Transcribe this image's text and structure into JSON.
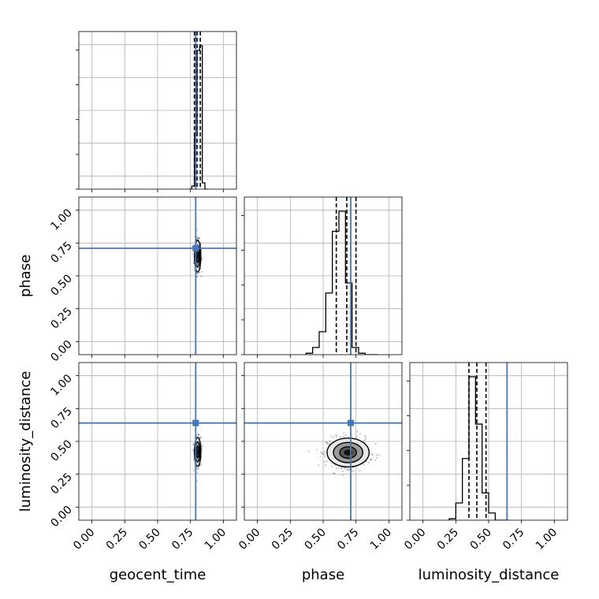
{
  "chart_data": {
    "type": "corner",
    "parameters": [
      "geocent_time",
      "phase",
      "luminosity_distance"
    ],
    "axis_labels": {
      "x": [
        "geocent_time",
        "phase",
        "luminosity_distance"
      ],
      "y": [
        "",
        "phase",
        "luminosity_distance"
      ]
    },
    "axis_range": [
      -0.1,
      1.1
    ],
    "ticks": [
      0.0,
      0.25,
      0.5,
      0.75,
      1.0
    ],
    "tick_labels": [
      "0.00",
      "0.25",
      "0.50",
      "0.75",
      "1.00"
    ],
    "grid": true,
    "truths": {
      "geocent_time": 0.79,
      "phase": 0.71,
      "luminosity_distance": 0.64
    },
    "truth_color": "#4477bb",
    "line_color": "#000000",
    "histograms": {
      "geocent_time": {
        "bin_edges": [
          0.74,
          0.76,
          0.78,
          0.8,
          0.82,
          0.84,
          0.86,
          0.88
        ],
        "counts": [
          0.0,
          0.02,
          0.35,
          0.88,
          0.91,
          0.04,
          0.0
        ],
        "quantiles": [
          0.78,
          0.8,
          0.825
        ],
        "median": 0.8
      },
      "phase": {
        "bin_edges": [
          0.37,
          0.42,
          0.47,
          0.52,
          0.57,
          0.62,
          0.67,
          0.72,
          0.77,
          0.82,
          0.87,
          0.92
        ],
        "counts": [
          0.01,
          0.05,
          0.16,
          0.43,
          0.86,
          1.0,
          0.5,
          0.05,
          0.01,
          0.0,
          0.0
        ],
        "quantiles": [
          0.6,
          0.68,
          0.75
        ],
        "median": 0.68
      },
      "luminosity_distance": {
        "bin_edges": [
          0.2,
          0.25,
          0.3,
          0.35,
          0.4,
          0.45,
          0.5,
          0.55,
          0.6,
          0.65
        ],
        "counts": [
          0.01,
          0.12,
          0.43,
          1.0,
          0.67,
          0.19,
          0.05,
          0.0,
          0.0
        ],
        "quantiles": [
          0.35,
          0.41,
          0.48
        ],
        "median": 0.41
      }
    },
    "scatter_2d": [
      {
        "x_param": "geocent_time",
        "y_param": "phase",
        "center": [
          0.805,
          0.65
        ],
        "sigma": [
          0.012,
          0.06
        ],
        "n": 420
      },
      {
        "x_param": "geocent_time",
        "y_param": "luminosity_distance",
        "center": [
          0.805,
          0.42
        ],
        "sigma": [
          0.012,
          0.055
        ],
        "n": 420
      },
      {
        "x_param": "phase",
        "y_param": "luminosity_distance",
        "center": [
          0.69,
          0.415
        ],
        "sigma": [
          0.08,
          0.055
        ],
        "n": 520
      }
    ]
  }
}
